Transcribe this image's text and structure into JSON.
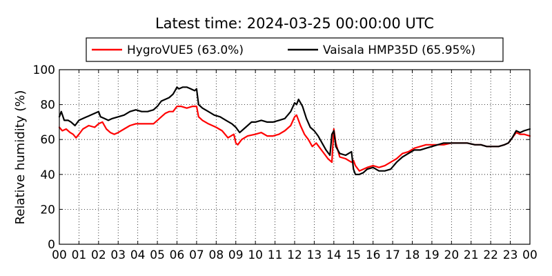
{
  "chart_data": {
    "type": "line",
    "title": "Latest time: 2024-03-25 00:00:00 UTC",
    "xlabel": "",
    "ylabel": "Relative humidity (%)",
    "xlim": [
      0,
      24
    ],
    "ylim": [
      0,
      100
    ],
    "x_tick_labels": [
      "00",
      "01",
      "02",
      "03",
      "04",
      "05",
      "06",
      "07",
      "08",
      "09",
      "10",
      "11",
      "12",
      "13",
      "14",
      "15",
      "16",
      "17",
      "18",
      "19",
      "20",
      "21",
      "22",
      "23",
      "00"
    ],
    "y_ticks": [
      0,
      20,
      40,
      60,
      80,
      100
    ],
    "grid": true,
    "legend_position": "top-center",
    "series": [
      {
        "name": "HygroVUE5 (63.0%)",
        "color": "#ff0000",
        "x": [
          0,
          0.15,
          0.35,
          0.55,
          0.7,
          0.85,
          1.0,
          1.2,
          1.5,
          1.8,
          2.0,
          2.2,
          2.4,
          2.6,
          2.8,
          3.0,
          3.3,
          3.6,
          3.9,
          4.2,
          4.5,
          4.8,
          5.0,
          5.2,
          5.4,
          5.6,
          5.8,
          6.0,
          6.2,
          6.5,
          6.8,
          7.0,
          7.1,
          7.3,
          7.6,
          8.0,
          8.3,
          8.6,
          8.9,
          9.0,
          9.1,
          9.3,
          9.6,
          10.0,
          10.3,
          10.6,
          10.9,
          11.2,
          11.5,
          11.8,
          12.0,
          12.1,
          12.3,
          12.5,
          12.7,
          12.9,
          13.1,
          13.3,
          13.5,
          13.7,
          13.9,
          14.0,
          14.1,
          14.3,
          14.6,
          14.9,
          15.0,
          15.1,
          15.3,
          15.5,
          15.7,
          16.0,
          16.3,
          16.6,
          16.9,
          17.2,
          17.5,
          17.8,
          18.1,
          18.4,
          18.7,
          19.0,
          19.3,
          19.6,
          20.0,
          20.4,
          20.8,
          21.2,
          21.5,
          21.8,
          22.1,
          22.4,
          22.7,
          22.9,
          23.1,
          23.3,
          23.5,
          23.7,
          24.0
        ],
        "y": [
          67,
          65,
          66,
          64,
          63,
          61,
          63,
          66,
          68,
          67,
          69,
          70,
          66,
          64,
          63,
          64,
          66,
          68,
          69,
          69,
          69,
          69,
          71,
          73,
          75,
          76,
          76,
          79,
          79,
          78,
          79,
          79,
          73,
          71,
          69,
          67,
          65,
          61,
          63,
          58,
          57,
          60,
          62,
          63,
          64,
          62,
          62,
          63,
          65,
          68,
          73,
          74,
          68,
          63,
          60,
          56,
          58,
          55,
          52,
          49,
          47,
          66,
          58,
          50,
          49,
          47,
          48,
          45,
          42,
          43,
          44,
          45,
          44,
          45,
          47,
          49,
          52,
          53,
          55,
          56,
          57,
          57,
          57,
          57,
          58,
          58,
          58,
          57,
          57,
          56,
          56,
          56,
          57,
          58,
          61,
          64,
          63,
          63,
          62
        ]
      },
      {
        "name": "Vaisala HMP35D (65.95%)",
        "color": "#000000",
        "x": [
          0,
          0.1,
          0.25,
          0.45,
          0.6,
          0.8,
          1.0,
          1.2,
          1.4,
          1.6,
          1.8,
          2.0,
          2.1,
          2.3,
          2.5,
          2.7,
          3.0,
          3.3,
          3.6,
          3.9,
          4.2,
          4.5,
          4.8,
          5.0,
          5.2,
          5.4,
          5.6,
          5.8,
          5.9,
          6.0,
          6.1,
          6.3,
          6.5,
          6.7,
          6.9,
          7.0,
          7.1,
          7.3,
          7.6,
          7.9,
          8.2,
          8.5,
          8.8,
          9.0,
          9.2,
          9.5,
          9.8,
          10.0,
          10.3,
          10.6,
          10.9,
          11.2,
          11.5,
          11.8,
          12.0,
          12.1,
          12.2,
          12.4,
          12.6,
          12.8,
          13.0,
          13.2,
          13.4,
          13.6,
          13.8,
          13.9,
          14.0,
          14.1,
          14.3,
          14.6,
          14.9,
          15.0,
          15.1,
          15.3,
          15.5,
          15.7,
          16.0,
          16.3,
          16.6,
          16.9,
          17.2,
          17.5,
          17.8,
          18.1,
          18.4,
          18.7,
          19.0,
          19.3,
          19.6,
          20.0,
          20.4,
          20.8,
          21.2,
          21.5,
          21.8,
          22.1,
          22.4,
          22.7,
          22.9,
          23.1,
          23.3,
          23.5,
          23.7,
          24.0
        ],
        "y": [
          73,
          76,
          71,
          71,
          70,
          68,
          71,
          72,
          73,
          74,
          75,
          76,
          73,
          72,
          71,
          72,
          73,
          74,
          76,
          77,
          76,
          76,
          77,
          79,
          82,
          83,
          84,
          86,
          88,
          90,
          89,
          90,
          90,
          89,
          88,
          89,
          80,
          78,
          76,
          74,
          73,
          71,
          69,
          67,
          64,
          67,
          70,
          70,
          71,
          70,
          70,
          71,
          72,
          76,
          81,
          80,
          83,
          79,
          72,
          67,
          65,
          62,
          58,
          54,
          51,
          63,
          65,
          56,
          52,
          51,
          53,
          43,
          40,
          40,
          41,
          43,
          44,
          42,
          42,
          43,
          47,
          50,
          52,
          54,
          54,
          55,
          56,
          57,
          58,
          58,
          58,
          58,
          57,
          57,
          56,
          56,
          56,
          57,
          58,
          61,
          65,
          64,
          65,
          66
        ]
      }
    ]
  }
}
